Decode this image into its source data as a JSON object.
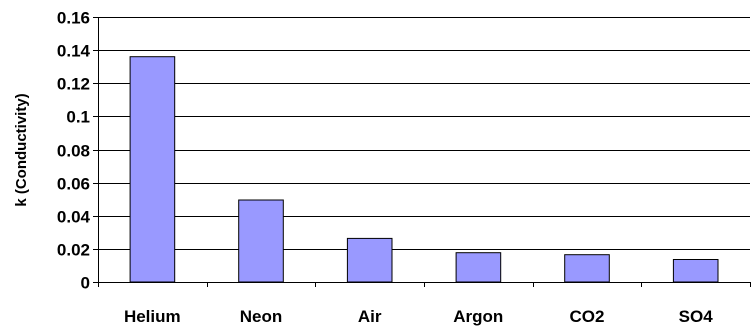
{
  "chart_data": {
    "type": "bar",
    "title": "",
    "xlabel": "",
    "ylabel": "k (Conductivity)",
    "categories": [
      "Helium",
      "Neon",
      "Air",
      "Argon",
      "CO2",
      "SO4"
    ],
    "values": [
      0.136,
      0.0495,
      0.0263,
      0.0177,
      0.0165,
      0.0136
    ],
    "ylim": [
      0,
      0.16
    ],
    "yticks": [
      0,
      0.02,
      0.04,
      0.06,
      0.08,
      0.1,
      0.12,
      0.14,
      0.16
    ],
    "ytick_labels": [
      "0",
      "0.02",
      "0.04",
      "0.06",
      "0.08",
      "0.1",
      "0.12",
      "0.14",
      "0.16"
    ],
    "grid": true,
    "legend": "none",
    "bar_color": "#9999ff",
    "bar_edge_color": "#000000",
    "grid_color": "#000000"
  }
}
